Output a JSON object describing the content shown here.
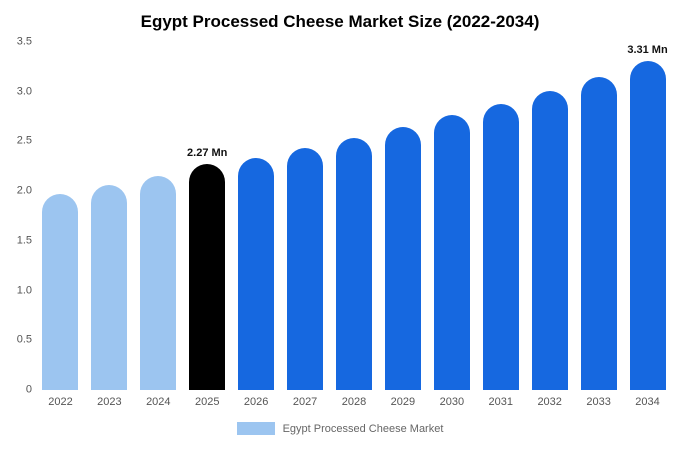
{
  "title": "Egypt Processed Cheese Market Size (2022-2034)",
  "legend": {
    "label": "Egypt Processed Cheese Market",
    "swatch_color": "#9cc5f0"
  },
  "y_axis": {
    "ticks": [
      "3.5",
      "3.0",
      "2.5",
      "2.0",
      "1.5",
      "1.0",
      "0.5",
      "0"
    ]
  },
  "colors": {
    "past": "#9cc5f0",
    "current": "#000000",
    "forecast": "#1668e0"
  },
  "chart_data": {
    "type": "bar",
    "title": "Egypt Processed Cheese Market Size (2022-2034)",
    "categories": [
      "2022",
      "2023",
      "2024",
      "2025",
      "2026",
      "2027",
      "2028",
      "2029",
      "2030",
      "2031",
      "2032",
      "2033",
      "2034"
    ],
    "values": [
      1.97,
      2.06,
      2.15,
      2.27,
      2.33,
      2.43,
      2.53,
      2.65,
      2.77,
      2.88,
      3.01,
      3.15,
      3.31
    ],
    "bar_colors": [
      "#9cc5f0",
      "#9cc5f0",
      "#9cc5f0",
      "#000000",
      "#1668e0",
      "#1668e0",
      "#1668e0",
      "#1668e0",
      "#1668e0",
      "#1668e0",
      "#1668e0",
      "#1668e0",
      "#1668e0"
    ],
    "data_labels": [
      "",
      "",
      "",
      "2.27 Mn",
      "",
      "",
      "",
      "",
      "",
      "",
      "",
      "",
      "3.31 Mn"
    ],
    "xlabel": "",
    "ylabel": "",
    "ylim": [
      0,
      3.5
    ],
    "grid": false,
    "legend_position": "bottom",
    "legend_entries": [
      "Egypt Processed Cheese Market"
    ]
  }
}
